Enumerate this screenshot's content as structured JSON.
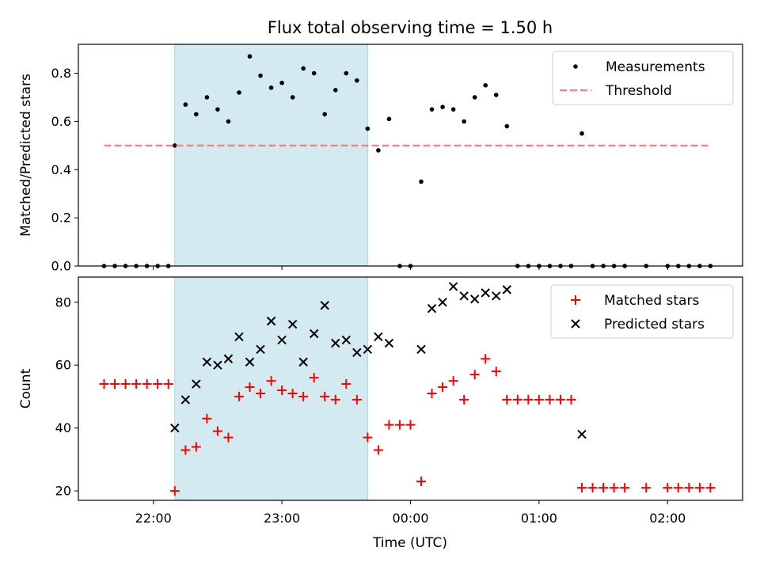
{
  "chart_data": {
    "title": "Flux total observing time = 1.50 h",
    "shaded_interval": {
      "start": "22:10",
      "end": "23:40"
    },
    "x_axis": {
      "label": "Time (UTC)",
      "ticks": [
        "22:00",
        "23:00",
        "00:00",
        "01:00",
        "02:00"
      ],
      "range": [
        "21:25",
        "02:35"
      ]
    },
    "panels": [
      {
        "type": "scatter",
        "ylabel": "Matched/Predicted stars",
        "ylim": [
          0,
          0.92
        ],
        "yticks": [
          "0.0",
          "0.2",
          "0.4",
          "0.6",
          "0.8"
        ],
        "legend_position": "top-right",
        "series": [
          {
            "name": "Measurements",
            "marker": "dot",
            "color": "#000000",
            "points": [
              [
                "21:37",
                0
              ],
              [
                "21:42",
                0
              ],
              [
                "21:47",
                0
              ],
              [
                "21:52",
                0
              ],
              [
                "21:57",
                0
              ],
              [
                "22:02",
                0
              ],
              [
                "22:07",
                0
              ],
              [
                "22:10",
                0.5
              ],
              [
                "22:15",
                0.67
              ],
              [
                "22:20",
                0.63
              ],
              [
                "22:25",
                0.7
              ],
              [
                "22:30",
                0.65
              ],
              [
                "22:35",
                0.6
              ],
              [
                "22:40",
                0.72
              ],
              [
                "22:45",
                0.87
              ],
              [
                "22:50",
                0.79
              ],
              [
                "22:55",
                0.74
              ],
              [
                "23:00",
                0.76
              ],
              [
                "23:05",
                0.7
              ],
              [
                "23:10",
                0.82
              ],
              [
                "23:15",
                0.8
              ],
              [
                "23:20",
                0.63
              ],
              [
                "23:25",
                0.73
              ],
              [
                "23:30",
                0.8
              ],
              [
                "23:35",
                0.77
              ],
              [
                "23:40",
                0.57
              ],
              [
                "23:45",
                0.48
              ],
              [
                "23:50",
                0.61
              ],
              [
                "23:55",
                0
              ],
              [
                "00:00",
                0
              ],
              [
                "00:05",
                0.35
              ],
              [
                "00:10",
                0.65
              ],
              [
                "00:15",
                0.66
              ],
              [
                "00:20",
                0.65
              ],
              [
                "00:25",
                0.6
              ],
              [
                "00:30",
                0.7
              ],
              [
                "00:35",
                0.75
              ],
              [
                "00:40",
                0.71
              ],
              [
                "00:45",
                0.58
              ],
              [
                "00:50",
                0
              ],
              [
                "00:55",
                0
              ],
              [
                "01:00",
                0
              ],
              [
                "01:05",
                0
              ],
              [
                "01:10",
                0
              ],
              [
                "01:15",
                0
              ],
              [
                "01:20",
                0.55
              ],
              [
                "01:25",
                0
              ],
              [
                "01:30",
                0
              ],
              [
                "01:35",
                0
              ],
              [
                "01:40",
                0
              ],
              [
                "01:50",
                0
              ],
              [
                "02:00",
                0
              ],
              [
                "02:05",
                0
              ],
              [
                "02:10",
                0
              ],
              [
                "02:15",
                0
              ],
              [
                "02:20",
                0
              ]
            ]
          },
          {
            "name": "Threshold",
            "type": "line",
            "style": "dashed",
            "color": "#ff7a7a",
            "points": [
              [
                "21:37",
                0.5
              ],
              [
                "02:20",
                0.5
              ]
            ]
          }
        ]
      },
      {
        "type": "scatter",
        "ylabel": "Count",
        "ylim": [
          17,
          88
        ],
        "yticks": [
          "20",
          "40",
          "60",
          "80"
        ],
        "legend_position": "top-right",
        "series": [
          {
            "name": "Matched stars",
            "marker": "plus",
            "color": "#ff0000",
            "points": [
              [
                "21:37",
                54
              ],
              [
                "21:42",
                54
              ],
              [
                "21:47",
                54
              ],
              [
                "21:52",
                54
              ],
              [
                "21:57",
                54
              ],
              [
                "22:02",
                54
              ],
              [
                "22:07",
                54
              ],
              [
                "22:10",
                20
              ],
              [
                "22:15",
                33
              ],
              [
                "22:20",
                34
              ],
              [
                "22:25",
                43
              ],
              [
                "22:30",
                39
              ],
              [
                "22:35",
                37
              ],
              [
                "22:40",
                50
              ],
              [
                "22:45",
                53
              ],
              [
                "22:50",
                51
              ],
              [
                "22:55",
                55
              ],
              [
                "23:00",
                52
              ],
              [
                "23:05",
                51
              ],
              [
                "23:10",
                50
              ],
              [
                "23:15",
                56
              ],
              [
                "23:20",
                50
              ],
              [
                "23:25",
                49
              ],
              [
                "23:30",
                54
              ],
              [
                "23:35",
                49
              ],
              [
                "23:40",
                37
              ],
              [
                "23:45",
                33
              ],
              [
                "23:50",
                41
              ],
              [
                "23:55",
                41
              ],
              [
                "00:00",
                41
              ],
              [
                "00:05",
                23
              ],
              [
                "00:10",
                51
              ],
              [
                "00:15",
                53
              ],
              [
                "00:20",
                55
              ],
              [
                "00:25",
                49
              ],
              [
                "00:30",
                57
              ],
              [
                "00:35",
                62
              ],
              [
                "00:40",
                58
              ],
              [
                "00:45",
                49
              ],
              [
                "00:50",
                49
              ],
              [
                "00:55",
                49
              ],
              [
                "01:00",
                49
              ],
              [
                "01:05",
                49
              ],
              [
                "01:10",
                49
              ],
              [
                "01:15",
                49
              ],
              [
                "01:20",
                21
              ],
              [
                "01:25",
                21
              ],
              [
                "01:30",
                21
              ],
              [
                "01:35",
                21
              ],
              [
                "01:40",
                21
              ],
              [
                "01:50",
                21
              ],
              [
                "02:00",
                21
              ],
              [
                "02:05",
                21
              ],
              [
                "02:10",
                21
              ],
              [
                "02:15",
                21
              ],
              [
                "02:20",
                21
              ]
            ]
          },
          {
            "name": "Predicted stars",
            "marker": "x",
            "color": "#000000",
            "points": [
              [
                "22:10",
                40
              ],
              [
                "22:15",
                49
              ],
              [
                "22:20",
                54
              ],
              [
                "22:25",
                61
              ],
              [
                "22:30",
                60
              ],
              [
                "22:35",
                62
              ],
              [
                "22:40",
                69
              ],
              [
                "22:45",
                61
              ],
              [
                "22:50",
                65
              ],
              [
                "22:55",
                74
              ],
              [
                "23:00",
                68
              ],
              [
                "23:05",
                73
              ],
              [
                "23:10",
                61
              ],
              [
                "23:15",
                70
              ],
              [
                "23:20",
                79
              ],
              [
                "23:25",
                67
              ],
              [
                "23:30",
                68
              ],
              [
                "23:35",
                64
              ],
              [
                "23:40",
                65
              ],
              [
                "23:45",
                69
              ],
              [
                "23:50",
                67
              ],
              [
                "00:05",
                65
              ],
              [
                "00:10",
                78
              ],
              [
                "00:15",
                80
              ],
              [
                "00:20",
                85
              ],
              [
                "00:25",
                82
              ],
              [
                "00:30",
                81
              ],
              [
                "00:35",
                83
              ],
              [
                "00:40",
                82
              ],
              [
                "00:45",
                84
              ],
              [
                "01:20",
                38
              ]
            ]
          }
        ]
      }
    ]
  }
}
